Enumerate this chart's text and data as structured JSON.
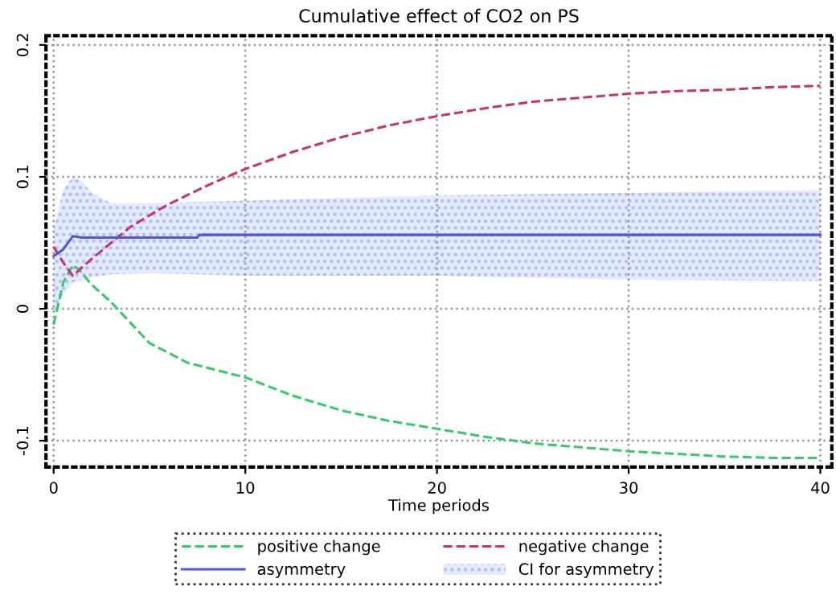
{
  "chart_data": {
    "type": "line",
    "title": "Cumulative effect of CO2 on PS",
    "xlabel": "Time periods",
    "xlim": [
      -0.4,
      40.6
    ],
    "ylim": [
      -0.12,
      0.207
    ],
    "xticks": [
      0,
      10,
      20,
      30,
      40
    ],
    "yticks": [
      -0.1,
      0,
      0.1,
      0.2
    ],
    "grid": true,
    "legend": "bottom",
    "series": [
      {
        "name": "positive change",
        "color": "#33cc66",
        "line_style": "dashed",
        "x": [
          0,
          0.5,
          1,
          1.3,
          2,
          3,
          5,
          7,
          10,
          12.5,
          15,
          17.5,
          20,
          22.5,
          25,
          27.5,
          30,
          32.5,
          35,
          37.5,
          40
        ],
        "values": [
          -0.012,
          0.02,
          0.033,
          0.03,
          0.018,
          0.005,
          -0.026,
          -0.041,
          -0.052,
          -0.066,
          -0.077,
          -0.085,
          -0.091,
          -0.097,
          -0.102,
          -0.105,
          -0.108,
          -0.11,
          -0.112,
          -0.113,
          -0.113
        ]
      },
      {
        "name": "negative change",
        "color": "#cc3366",
        "line_style": "dashed",
        "x": [
          0,
          0.5,
          1,
          2,
          3,
          4,
          5.6,
          6.1,
          8.1,
          10,
          12.5,
          15,
          17.5,
          20,
          22.5,
          25,
          27.5,
          30,
          32.5,
          35,
          37.5,
          40
        ],
        "values": [
          0.047,
          0.035,
          0.025,
          0.038,
          0.05,
          0.062,
          0.076,
          0.08,
          0.094,
          0.106,
          0.119,
          0.13,
          0.139,
          0.146,
          0.152,
          0.157,
          0.16,
          0.163,
          0.165,
          0.166,
          0.168,
          0.169
        ]
      },
      {
        "name": "asymmetry",
        "color": "#5555cc",
        "line_style": "solid",
        "x": [
          0,
          0.5,
          1,
          1.5,
          2,
          3,
          5,
          7.5,
          7.6,
          10,
          20,
          30,
          40
        ],
        "values": [
          0.04,
          0.045,
          0.055,
          0.054,
          0.054,
          0.054,
          0.054,
          0.054,
          0.056,
          0.056,
          0.056,
          0.056,
          0.056
        ],
        "lower": [
          -0.005,
          0.01,
          0.02,
          0.022,
          0.024,
          0.026,
          0.027,
          0.026,
          0.026,
          0.025,
          0.025,
          0.022,
          0.021
        ],
        "upper": [
          0.06,
          0.09,
          0.1,
          0.096,
          0.088,
          0.08,
          0.08,
          0.081,
          0.081,
          0.082,
          0.086,
          0.088,
          0.09
        ]
      }
    ],
    "annotations": [
      "CI for asymmetry"
    ]
  }
}
